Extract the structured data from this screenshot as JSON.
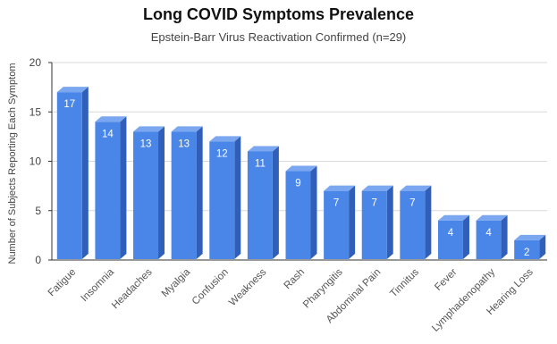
{
  "chart_data": {
    "type": "bar",
    "title": "Long COVID Symptoms Prevalence",
    "subtitle": "Epstein-Barr Virus Reactivation Confirmed (n=29)",
    "xlabel": "",
    "ylabel": "Number of Subjects Reporting Each Symptom",
    "ylim": [
      0,
      20
    ],
    "yticks": [
      0,
      5,
      10,
      15,
      20
    ],
    "grid": true,
    "categories": [
      "Fatigue",
      "Insomnia",
      "Headaches",
      "Myalgia",
      "Confusion",
      "Weakness",
      "Rash",
      "Pharyngitis",
      "Abdominal Pain",
      "Tinnitus",
      "Fever",
      "Lymphadenopathy",
      "Hearing Loss"
    ],
    "values": [
      17,
      14,
      13,
      13,
      12,
      11,
      9,
      7,
      7,
      7,
      4,
      4,
      2
    ],
    "colors": {
      "front": "#4a86e8",
      "side": "#2f5fb8",
      "top": "#7aa7f0",
      "grid": "#d9d9d9",
      "axis": "#333333"
    }
  }
}
